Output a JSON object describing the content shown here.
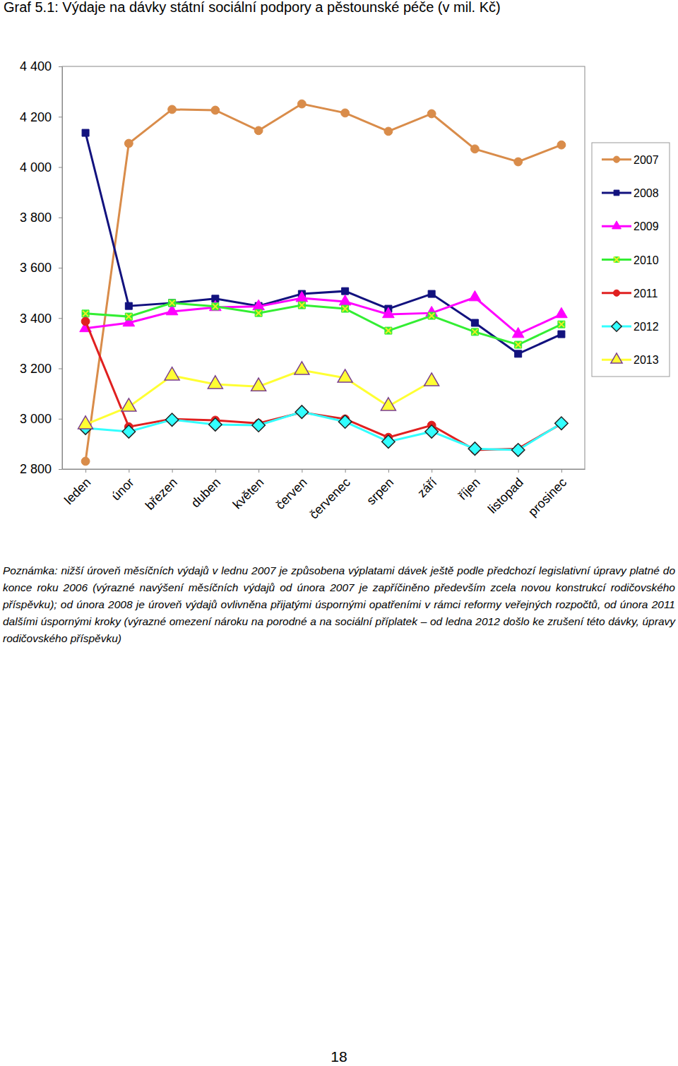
{
  "chart_data": {
    "type": "line",
    "title": "Graf 5.1: Výdaje na dávky státní sociální podpory a pěstounské péče (v mil. Kč)",
    "categories": [
      "leden",
      "únor",
      "březen",
      "duben",
      "květen",
      "červen",
      "červenec",
      "srpen",
      "září",
      "říjen",
      "listopad",
      "prosinec"
    ],
    "series": [
      {
        "name": "2007",
        "color": "#d98c4a",
        "marker": "circle",
        "values": [
          2831,
          4094,
          4229,
          4226,
          4145,
          4251,
          4215,
          4142,
          4212,
          4072,
          4021,
          4088
        ]
      },
      {
        "name": "2008",
        "color": "#12127e",
        "marker": "square",
        "values": [
          4136,
          3448,
          3460,
          3477,
          3448,
          3496,
          3507,
          3437,
          3496,
          3381,
          3258,
          3336
        ]
      },
      {
        "name": "2009",
        "color": "#ff00ff",
        "marker": "triangle",
        "values": [
          3359,
          3381,
          3426,
          3443,
          3446,
          3479,
          3465,
          3415,
          3420,
          3482,
          3336,
          3415
        ]
      },
      {
        "name": "2010",
        "color": "#33ee33",
        "marker": "square-x",
        "values": [
          3418,
          3406,
          3460,
          3446,
          3420,
          3451,
          3437,
          3350,
          3409,
          3345,
          3294,
          3375
        ]
      },
      {
        "name": "2011",
        "color": "#e02020",
        "marker": "circle",
        "values": [
          3387,
          2968,
          2999,
          2994,
          2982,
          3025,
          2999,
          2926,
          2974,
          2876,
          2881,
          2980
        ]
      },
      {
        "name": "2012",
        "color": "#33ffff",
        "marker": "outlined-diamond",
        "values": [
          2963,
          2949,
          2996,
          2977,
          2974,
          3027,
          2988,
          2909,
          2949,
          2881,
          2876,
          2982
        ]
      },
      {
        "name": "2013",
        "color": "#ffff33",
        "marker": "outlined-triangle",
        "values": [
          2977,
          3047,
          3171,
          3137,
          3128,
          3193,
          3162,
          3050,
          3148,
          null,
          null,
          null
        ]
      }
    ],
    "ylim": [
      2800,
      4400
    ],
    "yticks": [
      {
        "value": 2800,
        "label": "2 800"
      },
      {
        "value": 3000,
        "label": "3 000"
      },
      {
        "value": 3200,
        "label": "3 200"
      },
      {
        "value": 3400,
        "label": "3 400"
      },
      {
        "value": 3600,
        "label": "3 600"
      },
      {
        "value": 3800,
        "label": "3 800"
      },
      {
        "value": 4000,
        "label": "4 000"
      },
      {
        "value": 4200,
        "label": "4 200"
      },
      {
        "value": 4400,
        "label": "4 400"
      }
    ],
    "grid": false,
    "legend": "right"
  },
  "note": "Poznámka: nižší úroveň měsíčních výdajů v lednu 2007 je způsobena výplatami dávek ještě podle předchozí legislativní úpravy platné do konce roku 2006 (výrazné navýšení měsíčních výdajů od února 2007 je zapříčiněno především zcela novou konstrukcí rodičovského příspěvku); od února 2008 je úroveň výdajů ovlivněna přijatými úspornými opatřeními v rámci reformy veřejných rozpočtů, od února 2011 dalšími úspornými kroky (výrazné omezení nároku na porodné a na sociální příplatek – od ledna 2012 došlo ke zrušení této dávky, úpravy rodičovského příspěvku)",
  "page_number": "18"
}
